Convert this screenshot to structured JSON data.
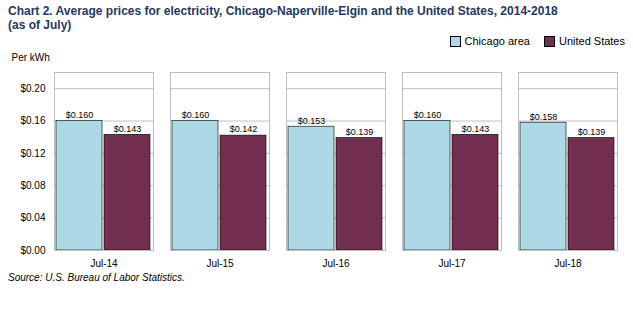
{
  "chart_data": {
    "type": "bar",
    "title": "Chart 2. Average prices for electricity, Chicago-Naperville-Elgin and the United States, 2014-2018",
    "subtitle": "(as of July)",
    "caption": "Source: U.S. Bureau of Labor Statistics.",
    "ylabel": "Per kWh",
    "categories": [
      "Jul-14",
      "Jul-15",
      "Jul-16",
      "Jul-17",
      "Jul-18"
    ],
    "series": [
      {
        "name": "Chicago area",
        "color": "#ADD8E6",
        "values": [
          0.16,
          0.16,
          0.153,
          0.16,
          0.158
        ],
        "value_labels": [
          "$0.160",
          "$0.160",
          "$0.153",
          "$0.160",
          "$0.158"
        ]
      },
      {
        "name": "United States",
        "color": "#722F50",
        "values": [
          0.143,
          0.142,
          0.139,
          0.143,
          0.139
        ],
        "value_labels": [
          "$0.143",
          "$0.142",
          "$0.139",
          "$0.143",
          "$0.139"
        ]
      }
    ],
    "ylim": [
      0.0,
      0.22
    ],
    "yticks": [
      {
        "value": 0.0,
        "label": "$0.00"
      },
      {
        "value": 0.04,
        "label": "$0.04"
      },
      {
        "value": 0.08,
        "label": "$0.08"
      },
      {
        "value": 0.12,
        "label": "$0.12"
      },
      {
        "value": 0.16,
        "label": "$0.16"
      },
      {
        "value": 0.2,
        "label": "$0.20"
      }
    ],
    "grid": true,
    "legend": "top-right",
    "data_labels": true
  }
}
